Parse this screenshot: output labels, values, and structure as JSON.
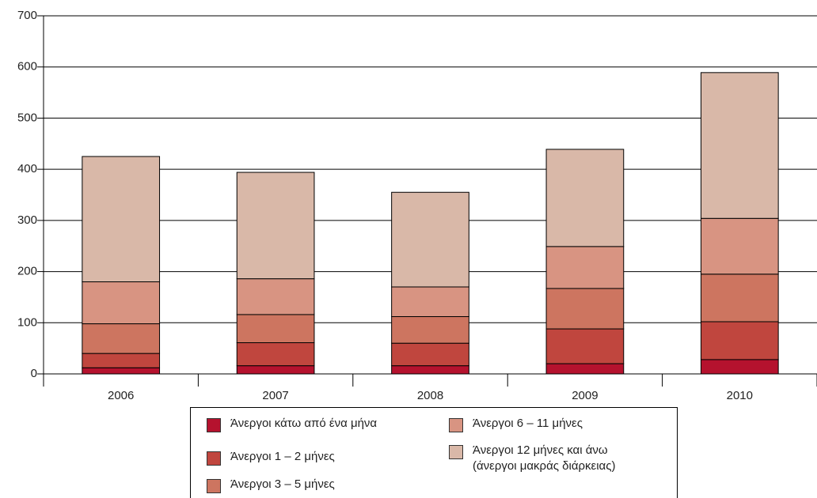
{
  "chart_data": {
    "type": "bar",
    "stacked": true,
    "categories": [
      "2006",
      "2007",
      "2008",
      "2009",
      "2010"
    ],
    "series": [
      {
        "name": "Άνεργοι κάτω από ένα μήνα",
        "color": "#b5122e",
        "values": [
          12,
          16,
          16,
          20,
          28
        ]
      },
      {
        "name": "Άνεργοι 1 – 2 μήνες",
        "color": "#c0463e",
        "values": [
          28,
          45,
          44,
          68,
          74
        ]
      },
      {
        "name": "Άνεργοι 3 – 5 μήνες",
        "color": "#cd7560",
        "values": [
          58,
          55,
          52,
          79,
          93
        ]
      },
      {
        "name": "Άνεργοι 6 – 11 μήνες",
        "color": "#d89482",
        "values": [
          82,
          70,
          58,
          82,
          109
        ]
      },
      {
        "name": "Άνεργοι 12 μήνες και άνω\n(άνεργοι μακράς διάρκειας)",
        "color": "#d9b8a8",
        "values": [
          245,
          208,
          185,
          190,
          285
        ]
      }
    ],
    "ylim": [
      0,
      700
    ],
    "yticks": [
      0,
      100,
      200,
      300,
      400,
      500,
      600,
      700
    ],
    "grid": true
  }
}
